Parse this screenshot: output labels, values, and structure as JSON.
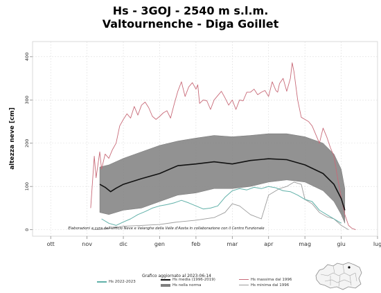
{
  "title": {
    "line1": "Hs - 3GOJ - 2540 m s.l.m.",
    "line2": "Valtournenche - Diga Goillet"
  },
  "credit": "Elaborazioni a cura dell'Ufficio Neve e Valanghe della Valle d'Aosta in collaborazione con il Centro Funzionale",
  "updated": "Grafico aggiornato al 2023-06-14",
  "legend": {
    "current": "Hs 2022-2023",
    "mean": "Hs media (1996-2019)",
    "norm": "Hs nella norma",
    "max": "Hs massima dal 1996",
    "min": "Hs minima dal 1996"
  },
  "colors": {
    "current": "#5fb0a8",
    "mean": "#111111",
    "norm": "#7f7f7f",
    "max": "#c86a78",
    "min": "#9a9a9a"
  },
  "icons": {
    "region_map": "valle-d-aosta-map-icon"
  },
  "chart_data": {
    "type": "line",
    "title": "Hs - 3GOJ - 2540 m s.l.m.",
    "subtitle": "Valtournenche - Diga Goillet",
    "xlabel": "",
    "ylabel": "altezza neve [cm]",
    "x_ticks": [
      "ott",
      "nov",
      "dic",
      "gen",
      "feb",
      "mar",
      "apr",
      "mag",
      "giu",
      "lug"
    ],
    "xlim": [
      -0.5,
      9.0
    ],
    "ylim": [
      -15,
      435
    ],
    "y_ticks": [
      0,
      100,
      200,
      300,
      400
    ],
    "grid": true,
    "legend_position": "bottom-center",
    "norm_band": {
      "x": [
        1.35,
        1.6,
        2.0,
        2.5,
        3.0,
        3.5,
        4.0,
        4.5,
        5.0,
        5.5,
        6.0,
        6.5,
        7.0,
        7.5,
        7.8,
        8.0,
        8.1
      ],
      "upper": [
        145,
        150,
        165,
        180,
        195,
        205,
        212,
        218,
        215,
        218,
        222,
        222,
        215,
        200,
        175,
        140,
        95
      ],
      "lower": [
        40,
        35,
        45,
        50,
        65,
        80,
        85,
        95,
        95,
        100,
        110,
        115,
        110,
        90,
        65,
        35,
        15
      ]
    },
    "series": [
      {
        "name": "Hs media (1996-2019)",
        "x": [
          1.35,
          1.5,
          1.65,
          1.8,
          2.0,
          2.5,
          3.0,
          3.5,
          4.0,
          4.5,
          5.0,
          5.5,
          6.0,
          6.5,
          7.0,
          7.5,
          7.8,
          8.0,
          8.1
        ],
        "y": [
          105,
          98,
          88,
          96,
          105,
          118,
          130,
          148,
          152,
          157,
          152,
          160,
          164,
          162,
          150,
          130,
          105,
          72,
          45
        ]
      },
      {
        "name": "Hs massima dal 1996",
        "x": [
          1.1,
          1.2,
          1.25,
          1.35,
          1.4,
          1.5,
          1.6,
          1.7,
          1.8,
          1.9,
          2.0,
          2.1,
          2.2,
          2.3,
          2.4,
          2.5,
          2.6,
          2.7,
          2.8,
          2.9,
          3.0,
          3.1,
          3.2,
          3.3,
          3.4,
          3.5,
          3.6,
          3.7,
          3.8,
          3.9,
          4.0,
          4.05,
          4.1,
          4.2,
          4.3,
          4.4,
          4.5,
          4.6,
          4.7,
          4.8,
          4.9,
          5.0,
          5.1,
          5.2,
          5.3,
          5.4,
          5.5,
          5.6,
          5.7,
          5.8,
          5.9,
          6.0,
          6.1,
          6.2,
          6.25,
          6.3,
          6.4,
          6.5,
          6.6,
          6.65,
          6.7,
          6.8,
          6.9,
          7.0,
          7.1,
          7.2,
          7.3,
          7.4,
          7.5,
          7.6,
          7.7,
          7.8,
          7.9,
          8.0,
          8.1,
          8.2,
          8.3,
          8.4
        ],
        "y": [
          50,
          170,
          120,
          180,
          140,
          175,
          165,
          185,
          200,
          240,
          255,
          268,
          258,
          285,
          265,
          288,
          295,
          282,
          262,
          255,
          262,
          270,
          275,
          258,
          290,
          320,
          342,
          308,
          330,
          340,
          325,
          335,
          292,
          300,
          298,
          278,
          300,
          310,
          320,
          305,
          288,
          300,
          278,
          300,
          298,
          318,
          318,
          325,
          312,
          318,
          322,
          308,
          342,
          322,
          318,
          338,
          350,
          320,
          350,
          386,
          365,
          300,
          260,
          255,
          250,
          240,
          220,
          200,
          235,
          215,
          190,
          170,
          120,
          75,
          35,
          10,
          3,
          0
        ]
      },
      {
        "name": "Hs minima dal 1996",
        "x": [
          1.15,
          1.3,
          1.5,
          1.8,
          2.0,
          2.5,
          3.0,
          3.5,
          4.0,
          4.5,
          4.8,
          5.0,
          5.2,
          5.5,
          5.8,
          6.0,
          6.3,
          6.5,
          6.7,
          6.9,
          7.0,
          7.2,
          7.4,
          7.6,
          7.8,
          8.0,
          8.2
        ],
        "y": [
          0,
          0,
          2,
          5,
          8,
          10,
          12,
          18,
          22,
          28,
          40,
          60,
          55,
          35,
          25,
          80,
          95,
          100,
          110,
          105,
          70,
          60,
          40,
          30,
          25,
          10,
          0
        ]
      },
      {
        "name": "Hs 2022-2023",
        "x": [
          1.4,
          1.6,
          1.8,
          2.0,
          2.2,
          2.4,
          2.6,
          2.8,
          3.0,
          3.2,
          3.4,
          3.6,
          3.8,
          4.0,
          4.2,
          4.4,
          4.6,
          4.8,
          5.0,
          5.2,
          5.4,
          5.6,
          5.8,
          6.0,
          6.2,
          6.4,
          6.6,
          6.8,
          7.0,
          7.2,
          7.4,
          7.6,
          7.8,
          8.0
        ],
        "y": [
          25,
          15,
          10,
          18,
          25,
          35,
          42,
          50,
          55,
          58,
          62,
          68,
          62,
          55,
          48,
          50,
          55,
          75,
          90,
          95,
          92,
          98,
          95,
          100,
          97,
          90,
          88,
          80,
          70,
          65,
          45,
          35,
          25,
          15
        ]
      }
    ]
  }
}
